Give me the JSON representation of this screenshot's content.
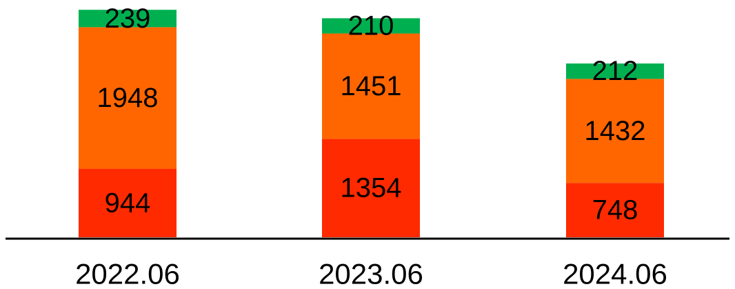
{
  "chart_data": {
    "type": "bar",
    "stacked": true,
    "categories": [
      "2022.06",
      "2023.06",
      "2024.06"
    ],
    "series": [
      {
        "values": [
          944,
          1354,
          748
        ],
        "color": "#ff2a00"
      },
      {
        "values": [
          1948,
          1451,
          1432
        ],
        "color": "#ff6600"
      },
      {
        "values": [
          239,
          210,
          212
        ],
        "color": "#00b050"
      }
    ],
    "ylim": [
      0,
      3152
    ],
    "grid": false,
    "legend": "none"
  }
}
